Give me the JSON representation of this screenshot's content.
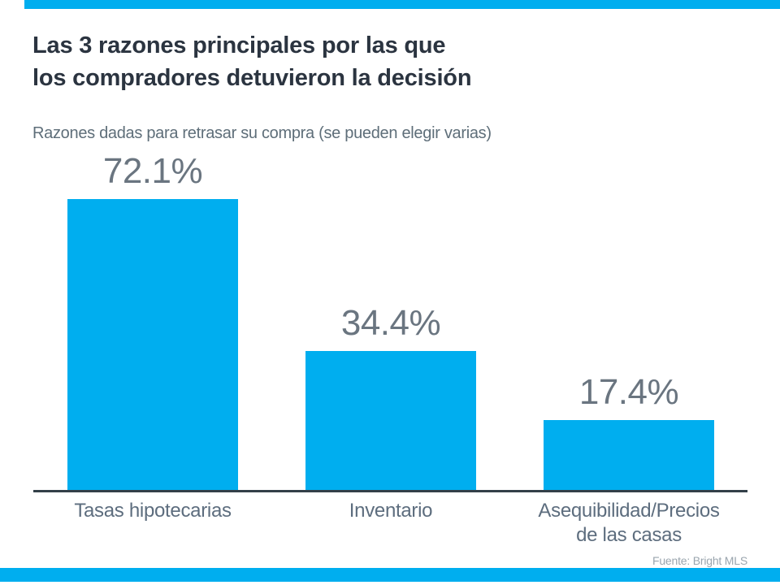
{
  "slide": {
    "title_lines": [
      "Las 3 razones principales por las que",
      "los compradores detuvieron la decisión"
    ],
    "subtitle": "Razones dadas para retrasar su compra (se pueden elegir varias)",
    "source": "Fuente: Bright MLS",
    "accent_color": "#00AEEF"
  },
  "chart_data": {
    "type": "bar",
    "title": "Las 3 razones principales por las que los compradores detuvieron la decisión",
    "subtitle": "Razones dadas para retrasar su compra (se pueden elegir varias)",
    "categories": [
      "Tasas hipotecarias",
      "Inventario",
      "Asequibilidad/Precios de las casas"
    ],
    "categories_display": [
      "Tasas hipotecarias",
      "Inventario",
      "Asequibilidad/Precios\nde las casas"
    ],
    "values": [
      72.1,
      34.4,
      17.4
    ],
    "value_labels": [
      "72.1%",
      "34.4%",
      "17.4%"
    ],
    "xlabel": "",
    "ylabel": "",
    "ylim": [
      0,
      80
    ],
    "grid": false,
    "legend": false,
    "bar_color": "#00AEEF",
    "value_label_color": "#6A7580",
    "category_label_color": "#5D6D7E",
    "axis_color": "#333F48"
  }
}
